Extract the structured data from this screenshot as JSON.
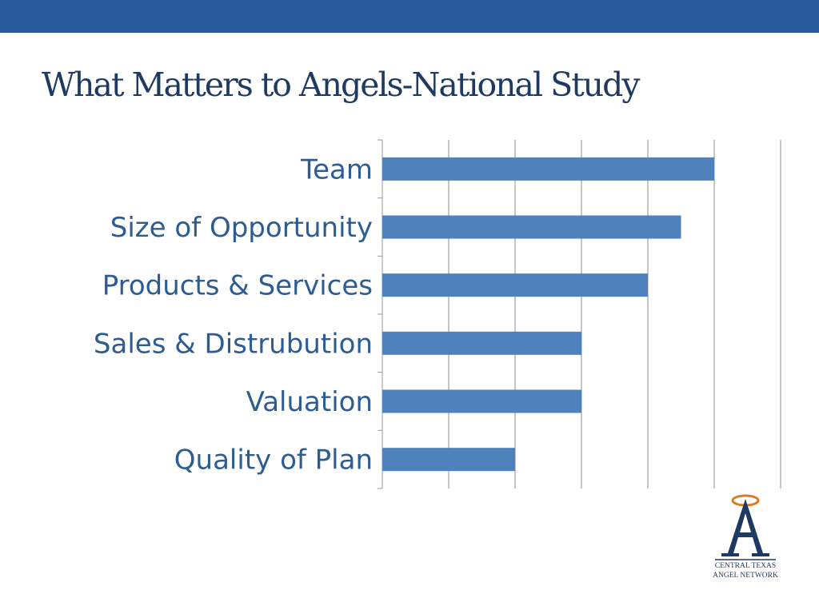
{
  "slide": {
    "title": "What Matters to Angels-National Study"
  },
  "logo": {
    "line1": "CENTRAL TEXAS",
    "line2": "ANGEL NETWORK"
  },
  "colors": {
    "top_bar": "#285a9b",
    "title": "#1f3a62",
    "bar": "#4f81bd",
    "category_label": "#2d5c93",
    "logo_orange": "#e07a1f"
  },
  "chart_data": {
    "type": "bar",
    "orientation": "horizontal",
    "categories": [
      "Team",
      "Size of Opportunity",
      "Products & Services",
      "Sales & Distrubution",
      "Valuation",
      "Quality of Plan"
    ],
    "values": [
      5,
      4.5,
      4,
      3,
      3,
      2
    ],
    "xlim": [
      0,
      6
    ],
    "grid": true,
    "legend": "none"
  }
}
